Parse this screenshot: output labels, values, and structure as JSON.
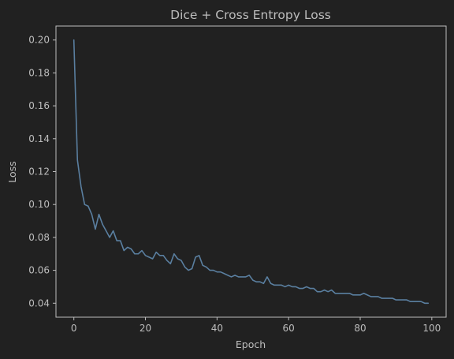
{
  "colors": {
    "background": "#212121",
    "axes": "#bdbdbd",
    "text": "#bdbdbd",
    "line": "#5a7fa0"
  },
  "chart_data": {
    "type": "line",
    "title": "Dice + Cross Entropy Loss",
    "xlabel": "Epoch",
    "ylabel": "Loss",
    "xlim": [
      -5,
      104
    ],
    "ylim": [
      0.0315,
      0.2085
    ],
    "xticks": [
      0,
      20,
      40,
      60,
      80,
      100
    ],
    "yticks": [
      0.04,
      0.06,
      0.08,
      0.1,
      0.12,
      0.14,
      0.16,
      0.18,
      0.2
    ],
    "xtick_labels": [
      "0",
      "20",
      "40",
      "60",
      "80",
      "100"
    ],
    "ytick_labels": [
      "0.04",
      "0.06",
      "0.08",
      "0.10",
      "0.12",
      "0.14",
      "0.16",
      "0.18",
      "0.20"
    ],
    "grid": false,
    "series": [
      {
        "x": [
          0,
          1,
          2,
          3,
          4,
          5,
          6,
          7,
          8,
          9,
          10,
          11,
          12,
          13,
          14,
          15,
          16,
          17,
          18,
          19,
          20,
          21,
          22,
          23,
          24,
          25,
          26,
          27,
          28,
          29,
          30,
          31,
          32,
          33,
          34,
          35,
          36,
          37,
          38,
          39,
          40,
          41,
          42,
          43,
          44,
          45,
          46,
          47,
          48,
          49,
          50,
          51,
          52,
          53,
          54,
          55,
          56,
          57,
          58,
          59,
          60,
          61,
          62,
          63,
          64,
          65,
          66,
          67,
          68,
          69,
          70,
          71,
          72,
          73,
          74,
          75,
          76,
          77,
          78,
          79,
          80,
          81,
          82,
          83,
          84,
          85,
          86,
          87,
          88,
          89,
          90,
          91,
          92,
          93,
          94,
          95,
          96,
          97,
          98,
          99
        ],
        "values": [
          0.2,
          0.127,
          0.111,
          0.1,
          0.099,
          0.094,
          0.085,
          0.094,
          0.088,
          0.084,
          0.08,
          0.084,
          0.078,
          0.078,
          0.072,
          0.074,
          0.073,
          0.07,
          0.07,
          0.072,
          0.069,
          0.068,
          0.067,
          0.071,
          0.069,
          0.069,
          0.066,
          0.064,
          0.07,
          0.067,
          0.066,
          0.062,
          0.06,
          0.061,
          0.068,
          0.069,
          0.063,
          0.062,
          0.06,
          0.06,
          0.059,
          0.059,
          0.058,
          0.057,
          0.056,
          0.057,
          0.056,
          0.056,
          0.056,
          0.057,
          0.054,
          0.053,
          0.053,
          0.052,
          0.056,
          0.052,
          0.051,
          0.051,
          0.051,
          0.05,
          0.051,
          0.05,
          0.05,
          0.049,
          0.049,
          0.05,
          0.049,
          0.049,
          0.047,
          0.047,
          0.048,
          0.047,
          0.048,
          0.046,
          0.046,
          0.046,
          0.046,
          0.046,
          0.045,
          0.045,
          0.045,
          0.046,
          0.045,
          0.044,
          0.044,
          0.044,
          0.043,
          0.043,
          0.043,
          0.043,
          0.042,
          0.042,
          0.042,
          0.042,
          0.041,
          0.041,
          0.041,
          0.041,
          0.04,
          0.04
        ]
      }
    ]
  }
}
